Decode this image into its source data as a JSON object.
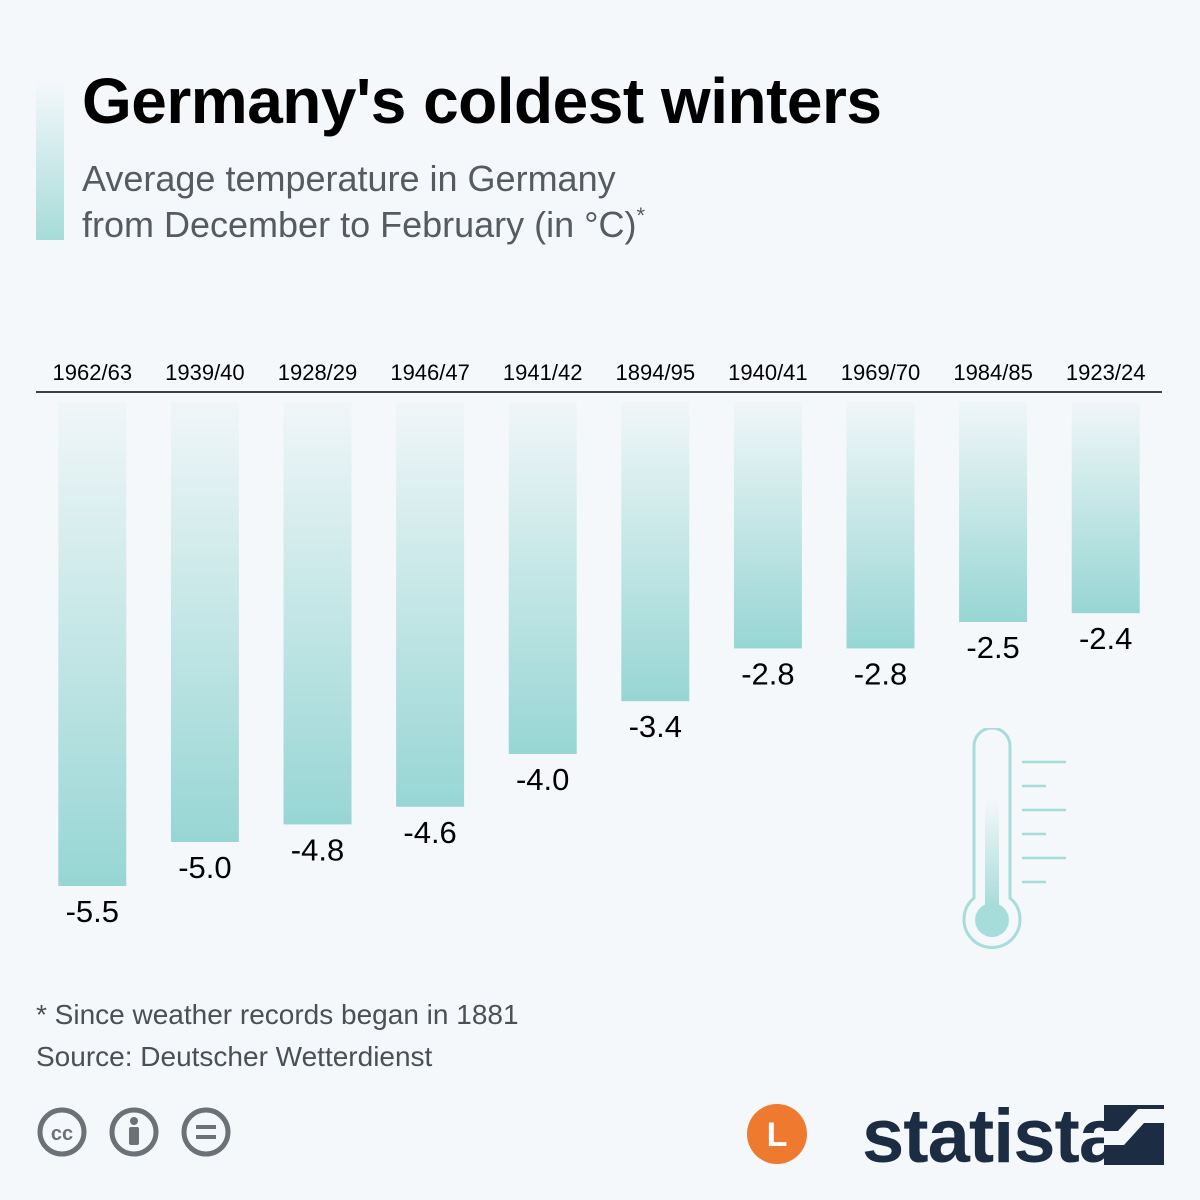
{
  "header": {
    "title": "Germany's coldest winters",
    "subtitle_line1": "Average temperature in Germany",
    "subtitle_line2": "from December to February (in °C)",
    "subtitle_marker": "*"
  },
  "chart_data": {
    "type": "bar",
    "title": "Germany's coldest winters",
    "subtitle": "Average temperature in Germany from December to February (in °C)*",
    "categories": [
      "1962/63",
      "1939/40",
      "1928/29",
      "1946/47",
      "1941/42",
      "1894/95",
      "1940/41",
      "1969/70",
      "1984/85",
      "1923/24"
    ],
    "values": [
      -5.5,
      -5.0,
      -4.8,
      -4.6,
      -4.0,
      -3.4,
      -2.8,
      -2.8,
      -2.5,
      -2.4
    ],
    "data_labels": [
      "-5.5",
      "-5.0",
      "-4.8",
      "-4.6",
      "-4.0",
      "-3.4",
      "-2.8",
      "-2.8",
      "-2.5",
      "-2.4"
    ],
    "orientation": "vertical-downward",
    "category_axis_position": "top",
    "value_axis_visible": false,
    "grid": false,
    "ylim": [
      -5.5,
      0
    ],
    "colors": {
      "bar_top": "#f0f6f8",
      "bar_bottom": "#97d6d4",
      "axis": "#000000"
    }
  },
  "footer": {
    "footnote": "* Since weather records began in 1881",
    "source": "Source: Deutscher Wetterdienst",
    "license_icons": [
      "cc-icon",
      "attribution-icon",
      "no-derivatives-icon"
    ],
    "brand_name": "statista",
    "brand_l_letter": "L"
  },
  "colors": {
    "background": "#f5f8fb",
    "text": "#000000",
    "subtitle": "#555b61",
    "brand": "#1c2c42",
    "orange": "#ee7a2f",
    "teal": "#97d6d4"
  }
}
